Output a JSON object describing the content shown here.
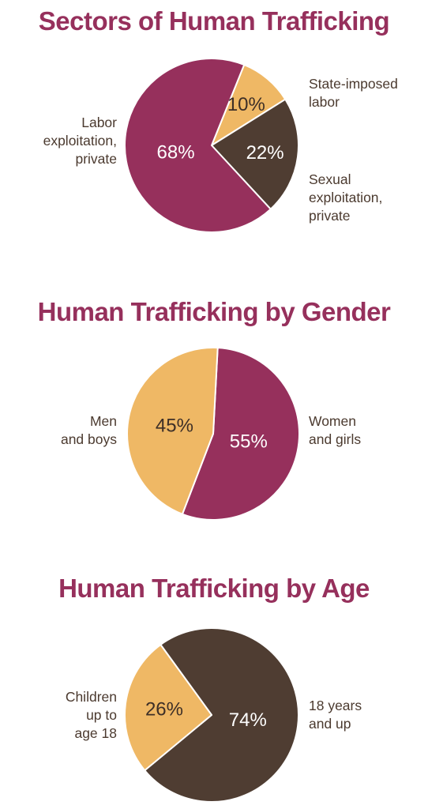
{
  "colors": {
    "title": "#96305c",
    "label": "#4b3a2f",
    "magenta": "#96305c",
    "gold": "#efb865",
    "brown": "#4f3d32",
    "on_dark": "#ffffff",
    "on_light": "#3d2f27"
  },
  "chart_data": [
    {
      "type": "pie",
      "title": "Sectors of Human Trafficking",
      "start_angle_deg": -68,
      "slices": [
        {
          "label_lines": [
            "State-imposed",
            "labor"
          ],
          "value": 10,
          "display": "10%",
          "color": "#efb865",
          "text_color": "#3d2f27"
        },
        {
          "label_lines": [
            "Sexual",
            "exploitation,",
            "private"
          ],
          "value": 22,
          "display": "22%",
          "color": "#4f3d32",
          "text_color": "#ffffff"
        },
        {
          "label_lines": [
            "Labor",
            "exploitation,",
            "private"
          ],
          "value": 68,
          "display": "68%",
          "color": "#96305c",
          "text_color": "#ffffff"
        }
      ]
    },
    {
      "type": "pie",
      "title": "Human Trafficking by Gender",
      "start_angle_deg": -87,
      "slices": [
        {
          "label_lines": [
            "Women",
            "and girls"
          ],
          "value": 55,
          "display": "55%",
          "color": "#96305c",
          "text_color": "#ffffff"
        },
        {
          "label_lines": [
            "Men",
            "and boys"
          ],
          "value": 45,
          "display": "45%",
          "color": "#efb865",
          "text_color": "#3d2f27"
        }
      ]
    },
    {
      "type": "pie",
      "title": "Human Trafficking by Age",
      "start_angle_deg": -126,
      "slices": [
        {
          "label_lines": [
            "18 years",
            "and up"
          ],
          "value": 74,
          "display": "74%",
          "color": "#4f3d32",
          "text_color": "#ffffff"
        },
        {
          "label_lines": [
            "Children",
            "up to",
            "age 18"
          ],
          "value": 26,
          "display": "26%",
          "color": "#efb865",
          "text_color": "#3d2f27"
        }
      ]
    }
  ]
}
